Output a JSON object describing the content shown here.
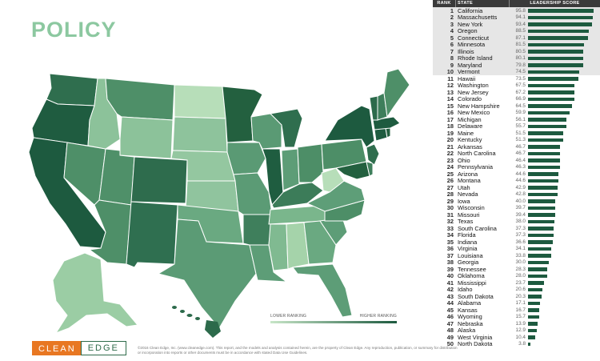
{
  "title": "POLICY",
  "table": {
    "headers": {
      "rank": "RANK",
      "state": "STATE",
      "score": "LEADERSHIP SCORE"
    },
    "max_score": 100,
    "rows": [
      {
        "rank": "1",
        "state": "California",
        "score": "95.8",
        "value": 95.8
      },
      {
        "rank": "2",
        "state": "Massachusetts",
        "score": "94.1",
        "value": 94.1
      },
      {
        "rank": "3",
        "state": "New York",
        "score": "93.4",
        "value": 93.4
      },
      {
        "rank": "4",
        "state": "Oregon",
        "score": "88.5",
        "value": 88.5
      },
      {
        "rank": "5",
        "state": "Connecticut",
        "score": "87.1",
        "value": 87.1
      },
      {
        "rank": "6",
        "state": "Minnesota",
        "score": "81.5",
        "value": 81.5
      },
      {
        "rank": "7",
        "state": "Illinois",
        "score": "80.5",
        "value": 80.5
      },
      {
        "rank": "8",
        "state": "Rhode Island",
        "score": "80.1",
        "value": 80.1
      },
      {
        "rank": "9",
        "state": "Maryland",
        "score": "79.8",
        "value": 79.8
      },
      {
        "rank": "10",
        "state": "Vermont",
        "score": "74.5",
        "value": 74.5
      },
      {
        "rank": "11",
        "state": "Hawaii",
        "score": "73.5",
        "value": 73.5
      },
      {
        "rank": "12",
        "state": "Washington",
        "score": "67.5",
        "value": 67.5
      },
      {
        "rank": "13",
        "state": "New Jersey",
        "score": "67.2",
        "value": 67.2
      },
      {
        "rank": "14",
        "state": "Colorado",
        "score": "66.9",
        "value": 66.9
      },
      {
        "rank": "15",
        "state": "New Hampshire",
        "score": "64.5",
        "value": 64.5
      },
      {
        "rank": "16",
        "state": "New Mexico",
        "score": "59.9",
        "value": 59.9
      },
      {
        "rank": "17",
        "state": "Michigan",
        "score": "56.1",
        "value": 56.1
      },
      {
        "rank": "18",
        "state": "Delaware",
        "score": "55.7",
        "value": 55.7
      },
      {
        "rank": "19",
        "state": "Maine",
        "score": "51.5",
        "value": 51.5
      },
      {
        "rank": "20",
        "state": "Kentucky",
        "score": "51.3",
        "value": 51.3
      },
      {
        "rank": "21",
        "state": "Arkansas",
        "score": "46.7",
        "value": 46.7
      },
      {
        "rank": "22",
        "state": "North Carolina",
        "score": "46.7",
        "value": 46.7
      },
      {
        "rank": "23",
        "state": "Ohio",
        "score": "46.4",
        "value": 46.4
      },
      {
        "rank": "24",
        "state": "Pennsylvania",
        "score": "46.3",
        "value": 46.3
      },
      {
        "rank": "25",
        "state": "Arizona",
        "score": "44.6",
        "value": 44.6
      },
      {
        "rank": "26",
        "state": "Montana",
        "score": "44.6",
        "value": 44.6
      },
      {
        "rank": "27",
        "state": "Utah",
        "score": "42.9",
        "value": 42.9
      },
      {
        "rank": "28",
        "state": "Nevada",
        "score": "42.8",
        "value": 42.8
      },
      {
        "rank": "29",
        "state": "Iowa",
        "score": "40.0",
        "value": 40.0
      },
      {
        "rank": "30",
        "state": "Wisconsin",
        "score": "39.7",
        "value": 39.7
      },
      {
        "rank": "31",
        "state": "Missouri",
        "score": "39.4",
        "value": 39.4
      },
      {
        "rank": "32",
        "state": "Texas",
        "score": "38.0",
        "value": 38.0
      },
      {
        "rank": "33",
        "state": "South Carolina",
        "score": "37.3",
        "value": 37.3
      },
      {
        "rank": "34",
        "state": "Florida",
        "score": "37.3",
        "value": 37.3
      },
      {
        "rank": "35",
        "state": "Indiana",
        "score": "36.6",
        "value": 36.6
      },
      {
        "rank": "36",
        "state": "Virginia",
        "score": "34.1",
        "value": 34.1
      },
      {
        "rank": "37",
        "state": "Louisiana",
        "score": "33.8",
        "value": 33.8
      },
      {
        "rank": "38",
        "state": "Georgia",
        "score": "30.0",
        "value": 30.0
      },
      {
        "rank": "39",
        "state": "Tennessee",
        "score": "28.3",
        "value": 28.3
      },
      {
        "rank": "40",
        "state": "Oklahoma",
        "score": "28.0",
        "value": 28.0
      },
      {
        "rank": "41",
        "state": "Mississippi",
        "score": "23.7",
        "value": 23.7
      },
      {
        "rank": "42",
        "state": "Idaho",
        "score": "20.6",
        "value": 20.6
      },
      {
        "rank": "43",
        "state": "South Dakota",
        "score": "20.3",
        "value": 20.3
      },
      {
        "rank": "44",
        "state": "Alabama",
        "score": "17.1",
        "value": 17.1
      },
      {
        "rank": "45",
        "state": "Kansas",
        "score": "16.7",
        "value": 16.7
      },
      {
        "rank": "46",
        "state": "Wyoming",
        "score": "15.7",
        "value": 15.7
      },
      {
        "rank": "47",
        "state": "Nebraska",
        "score": "13.9",
        "value": 13.9
      },
      {
        "rank": "48",
        "state": "Alaska",
        "score": "12.9",
        "value": 12.9
      },
      {
        "rank": "49",
        "state": "West Virginia",
        "score": "10.4",
        "value": 10.4
      },
      {
        "rank": "50",
        "state": "North Dakota",
        "score": "3.8",
        "value": 3.8
      }
    ]
  },
  "legend": {
    "low": "LOWER RANKING",
    "high": "HIGHER RANKING"
  },
  "logo": {
    "part1": "CLEAN",
    "part2": "EDGE"
  },
  "copyright": "©2016 Clean Edge, Inc. (www.cleanedge.com). This report, and the models and analysis contained herein, are the property of Clean Edge. Any reproduction, publication, or summary for distribution or incorporation into reports or other documents must be in accordance with stated Data Use Guidelines.",
  "colors": {
    "darkest": "#1d5a3f",
    "lightest": "#c8e6c8",
    "accent": "#e87722"
  }
}
